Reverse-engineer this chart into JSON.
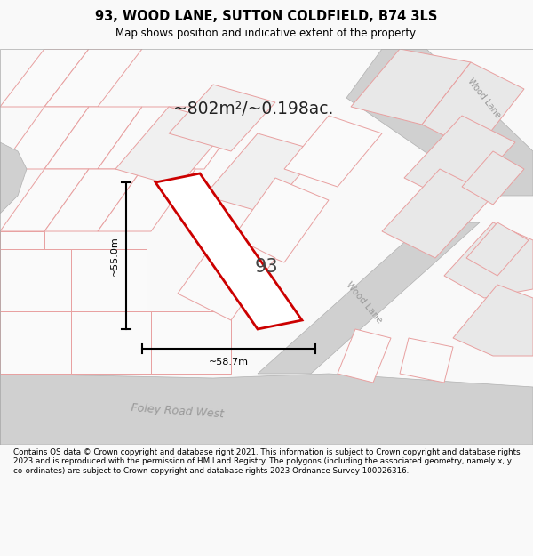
{
  "title": "93, WOOD LANE, SUTTON COLDFIELD, B74 3LS",
  "subtitle": "Map shows position and indicative extent of the property.",
  "area_text": "~802m²/~0.198ac.",
  "label_55": "~55.0m",
  "label_587": "~58.7m",
  "property_label": "93",
  "footer": "Contains OS data © Crown copyright and database right 2021. This information is subject to Crown copyright and database rights 2023 and is reproduced with the permission of HM Land Registry. The polygons (including the associated geometry, namely x, y co-ordinates) are subject to Crown copyright and database rights 2023 Ordnance Survey 100026316.",
  "bg_color": "#f9f9f9",
  "map_bg": "#f2f2f2",
  "property_fill": "#ffffff",
  "property_edge": "#cc0000",
  "road_gray": "#d0d0d0",
  "plot_fill": "#e8e8e8",
  "pink_edge": "#e8a0a0",
  "dark_gray_edge": "#b0b0b0"
}
